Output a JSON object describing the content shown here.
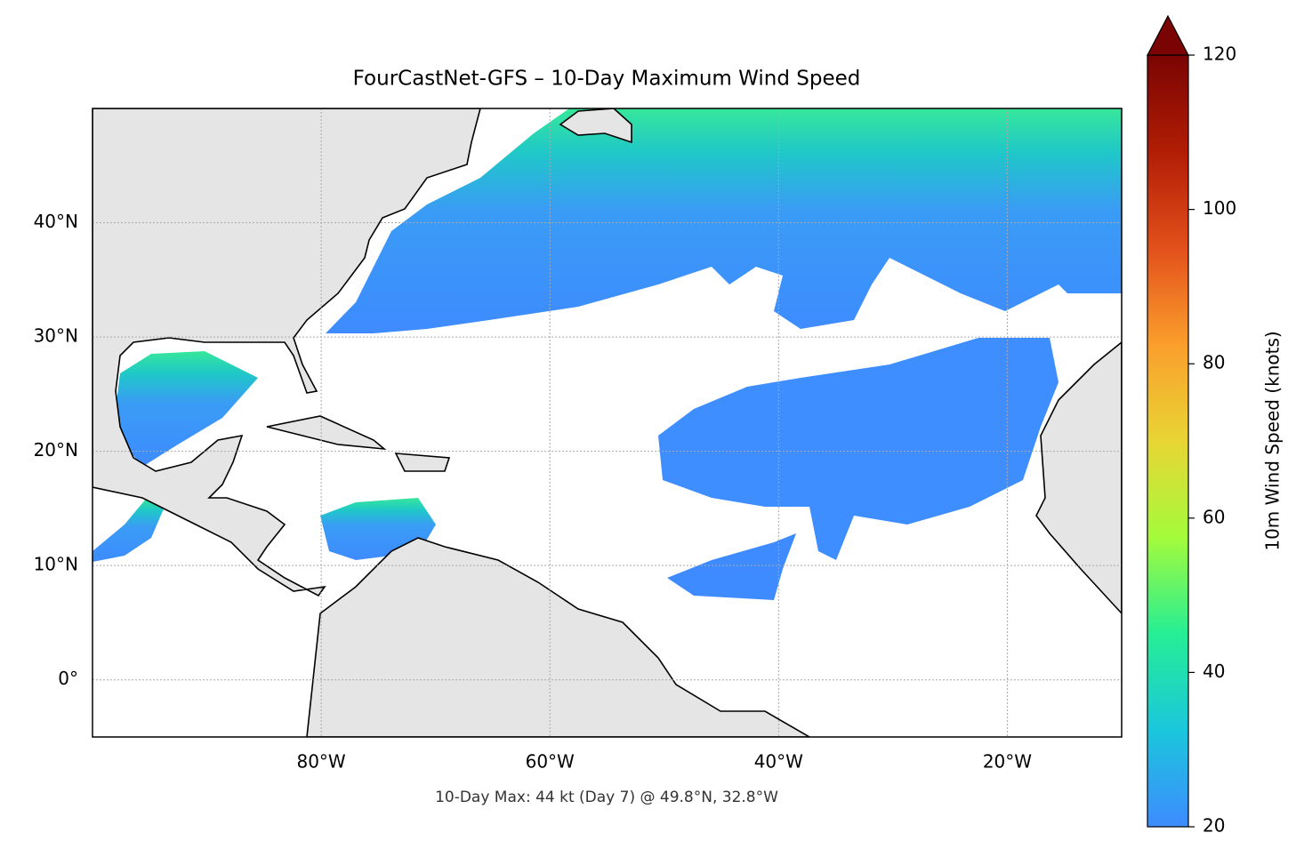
{
  "chart_data": {
    "type": "map",
    "title": "FourCastNet-GFS – 10-Day Maximum Wind Speed",
    "annotation": "10-Day Max: 44 kt (Day 7) @ 49.8°N, 32.8°W",
    "xlim": [
      -100,
      -10
    ],
    "ylim": [
      -5,
      50
    ],
    "xticks": [
      {
        "value": -80,
        "label": "80°W"
      },
      {
        "value": -60,
        "label": "60°W"
      },
      {
        "value": -40,
        "label": "40°W"
      },
      {
        "value": -20,
        "label": "20°W"
      }
    ],
    "yticks": [
      {
        "value": 0,
        "label": "0°"
      },
      {
        "value": 10,
        "label": "10°N"
      },
      {
        "value": 20,
        "label": "20°N"
      },
      {
        "value": 30,
        "label": "30°N"
      },
      {
        "value": 40,
        "label": "40°N"
      }
    ],
    "grid": true,
    "colorbar": {
      "label": "10m Wind Speed (knots)",
      "lim": [
        20,
        120
      ],
      "ticks": [
        20,
        40,
        60,
        80,
        100,
        120
      ],
      "extend": "max",
      "colormap": [
        "#3e8bff",
        "#1ac7dc",
        "#26ee95",
        "#a4fb3a",
        "#e8d534",
        "#fb9e2c",
        "#e2501b",
        "#b11d05",
        "#7a0403"
      ]
    }
  }
}
